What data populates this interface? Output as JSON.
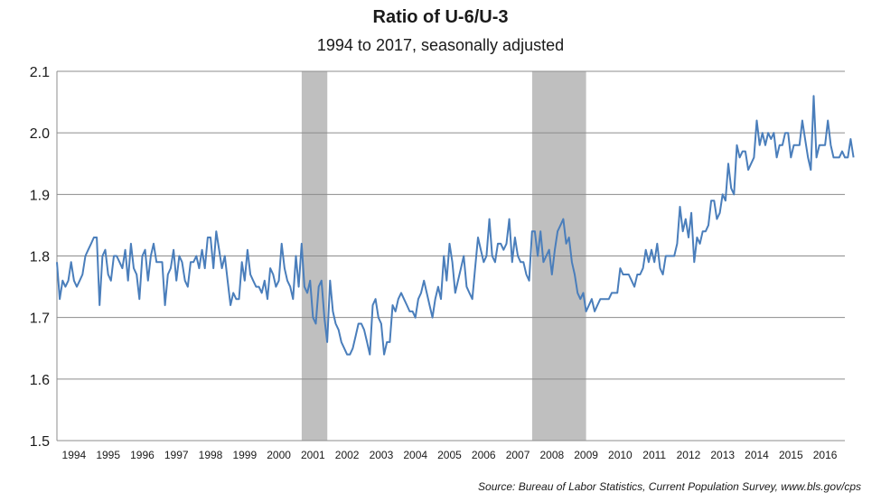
{
  "chart_data": {
    "type": "line",
    "title": "Ratio of U-6/U-3",
    "subtitle": "1994 to 2017, seasonally adjusted",
    "source": "Source: Bureau of Labor Statistics, Current Population Survey, www.bls.gov/cps",
    "xlabel": "",
    "ylabel": "",
    "ylim": [
      1.5,
      2.1
    ],
    "yticks": [
      "1.5",
      "1.6",
      "1.7",
      "1.8",
      "1.9",
      "2.0",
      "2.1"
    ],
    "xlim": [
      1994.0,
      2017.08
    ],
    "xticks": [
      "1994",
      "1995",
      "1996",
      "1997",
      "1998",
      "1999",
      "2000",
      "2001",
      "2002",
      "2003",
      "2004",
      "2005",
      "2006",
      "2007",
      "2008",
      "2009",
      "2010",
      "2011",
      "2012",
      "2013",
      "2014",
      "2015",
      "2016"
    ],
    "grid": true,
    "legend": "none",
    "line_color": "#4a7ebb",
    "recession_color": "#bfbfbf",
    "recessions": [
      [
        2001.17,
        2001.92
      ],
      [
        2007.92,
        2009.5
      ]
    ],
    "series": [
      {
        "name": "Ratio of U-6/U-3",
        "start_year": 1994,
        "frequency": "monthly",
        "values": [
          1.79,
          1.73,
          1.76,
          1.75,
          1.76,
          1.79,
          1.76,
          1.75,
          1.76,
          1.77,
          1.8,
          1.81,
          1.82,
          1.83,
          1.83,
          1.72,
          1.8,
          1.81,
          1.77,
          1.76,
          1.8,
          1.8,
          1.79,
          1.78,
          1.81,
          1.76,
          1.82,
          1.78,
          1.77,
          1.73,
          1.8,
          1.81,
          1.76,
          1.8,
          1.82,
          1.79,
          1.79,
          1.79,
          1.72,
          1.77,
          1.78,
          1.81,
          1.76,
          1.8,
          1.79,
          1.76,
          1.75,
          1.79,
          1.79,
          1.8,
          1.78,
          1.81,
          1.78,
          1.83,
          1.83,
          1.78,
          1.84,
          1.81,
          1.78,
          1.8,
          1.76,
          1.72,
          1.74,
          1.73,
          1.73,
          1.79,
          1.76,
          1.81,
          1.77,
          1.76,
          1.75,
          1.75,
          1.74,
          1.76,
          1.73,
          1.78,
          1.77,
          1.75,
          1.76,
          1.82,
          1.78,
          1.76,
          1.75,
          1.73,
          1.8,
          1.75,
          1.82,
          1.75,
          1.74,
          1.76,
          1.7,
          1.69,
          1.75,
          1.76,
          1.7,
          1.66,
          1.76,
          1.71,
          1.69,
          1.68,
          1.66,
          1.65,
          1.64,
          1.64,
          1.65,
          1.67,
          1.69,
          1.69,
          1.68,
          1.66,
          1.64,
          1.72,
          1.73,
          1.7,
          1.69,
          1.64,
          1.66,
          1.66,
          1.72,
          1.71,
          1.73,
          1.74,
          1.73,
          1.72,
          1.71,
          1.71,
          1.7,
          1.73,
          1.74,
          1.76,
          1.74,
          1.72,
          1.7,
          1.73,
          1.75,
          1.73,
          1.8,
          1.76,
          1.82,
          1.79,
          1.74,
          1.76,
          1.78,
          1.8,
          1.75,
          1.74,
          1.73,
          1.78,
          1.83,
          1.81,
          1.79,
          1.8,
          1.86,
          1.8,
          1.79,
          1.82,
          1.82,
          1.81,
          1.82,
          1.86,
          1.79,
          1.83,
          1.8,
          1.79,
          1.79,
          1.77,
          1.76,
          1.84,
          1.84,
          1.8,
          1.84,
          1.79,
          1.8,
          1.81,
          1.77,
          1.81,
          1.84,
          1.85,
          1.86,
          1.82,
          1.83,
          1.79,
          1.77,
          1.74,
          1.73,
          1.74,
          1.71,
          1.72,
          1.73,
          1.71,
          1.72,
          1.73,
          1.73,
          1.73,
          1.73,
          1.74,
          1.74,
          1.74,
          1.78,
          1.77,
          1.77,
          1.77,
          1.76,
          1.75,
          1.77,
          1.77,
          1.78,
          1.81,
          1.79,
          1.81,
          1.79,
          1.82,
          1.78,
          1.77,
          1.8,
          1.8,
          1.8,
          1.8,
          1.82,
          1.88,
          1.84,
          1.86,
          1.83,
          1.87,
          1.79,
          1.83,
          1.82,
          1.84,
          1.84,
          1.85,
          1.89,
          1.89,
          1.86,
          1.87,
          1.9,
          1.89,
          1.95,
          1.91,
          1.9,
          1.98,
          1.96,
          1.97,
          1.97,
          1.94,
          1.95,
          1.96,
          2.02,
          1.98,
          2.0,
          1.98,
          2.0,
          1.99,
          2.0,
          1.96,
          1.98,
          1.98,
          2.0,
          2.0,
          1.96,
          1.98,
          1.98,
          1.98,
          2.02,
          1.99,
          1.96,
          1.94,
          2.06,
          1.96,
          1.98,
          1.98,
          1.98,
          2.02,
          1.98,
          1.96,
          1.96,
          1.96,
          1.97,
          1.96,
          1.96,
          1.99,
          1.96
        ]
      }
    ]
  }
}
